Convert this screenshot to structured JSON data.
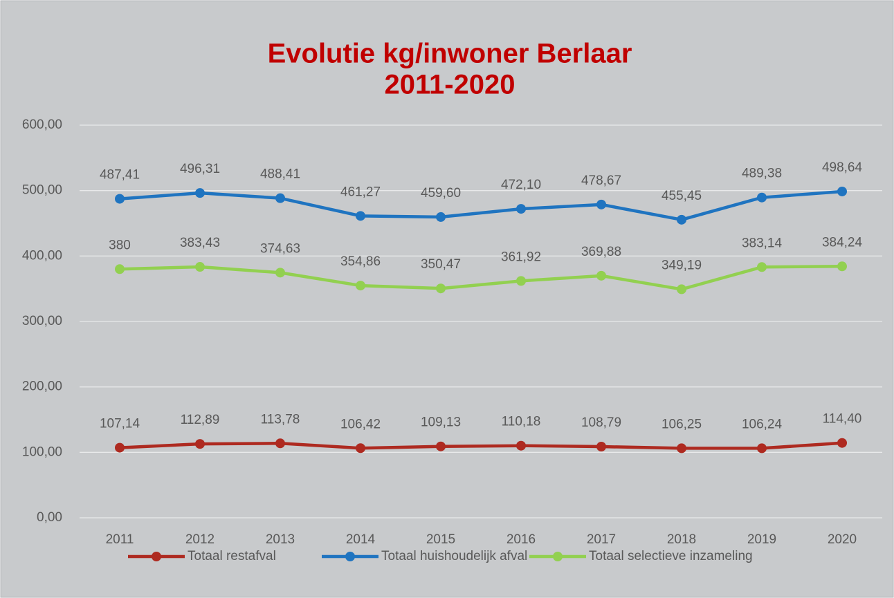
{
  "chart_data": {
    "type": "line",
    "title": [
      "Evolutie kg/inwoner Berlaar",
      "2011-2020"
    ],
    "categories": [
      "2011",
      "2012",
      "2013",
      "2014",
      "2015",
      "2016",
      "2017",
      "2018",
      "2019",
      "2020"
    ],
    "series": [
      {
        "name": "Totaal restafval",
        "color": "#ae2a20",
        "values": [
          107.14,
          112.89,
          113.78,
          106.42,
          109.13,
          110.18,
          108.79,
          106.25,
          106.24,
          114.4
        ],
        "value_labels": [
          "107,14",
          "112,89",
          "113,78",
          "106,42",
          "109,13",
          "110,18",
          "108,79",
          "106,25",
          "106,24",
          "114,40"
        ]
      },
      {
        "name": "Totaal huishoudelijk afval",
        "color": "#1f74c0",
        "values": [
          487.41,
          496.31,
          488.41,
          461.27,
          459.6,
          472.1,
          478.67,
          455.45,
          489.38,
          498.64
        ],
        "value_labels": [
          "487,41",
          "496,31",
          "488,41",
          "461,27",
          "459,60",
          "472,10",
          "478,67",
          "455,45",
          "489,38",
          "498,64"
        ]
      },
      {
        "name": "Totaal selectieve inzameling",
        "color": "#92d050",
        "values": [
          380,
          383.43,
          374.63,
          354.86,
          350.47,
          361.92,
          369.88,
          349.19,
          383.14,
          384.24
        ],
        "value_labels": [
          "380",
          "383,43",
          "374,63",
          "354,86",
          "350,47",
          "361,92",
          "369,88",
          "349,19",
          "383,14",
          "384,24"
        ]
      }
    ],
    "ylim": [
      0,
      600
    ],
    "yticks": [
      {
        "value": 0,
        "label": "0,00"
      },
      {
        "value": 100,
        "label": "100,00"
      },
      {
        "value": 200,
        "label": "200,00"
      },
      {
        "value": 300,
        "label": "300,00"
      },
      {
        "value": 400,
        "label": "400,00"
      },
      {
        "value": 500,
        "label": "500,00"
      },
      {
        "value": 600,
        "label": "600,00"
      }
    ],
    "grid": true,
    "legend": "bottom"
  }
}
